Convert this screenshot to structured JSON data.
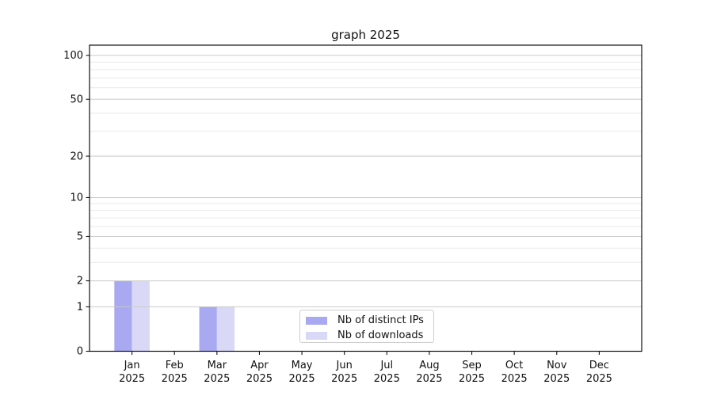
{
  "chart_data": {
    "type": "bar",
    "title": "graph 2025",
    "categories": [
      "Jan 2025",
      "Feb 2025",
      "Mar 2025",
      "Apr 2025",
      "May 2025",
      "Jun 2025",
      "Jul 2025",
      "Aug 2025",
      "Sep 2025",
      "Oct 2025",
      "Nov 2025",
      "Dec 2025"
    ],
    "x_axis": {
      "tick_months": [
        "Jan",
        "Feb",
        "Mar",
        "Apr",
        "May",
        "Jun",
        "Jul",
        "Aug",
        "Sep",
        "Oct",
        "Nov",
        "Dec"
      ],
      "tick_year": "2025"
    },
    "series": [
      {
        "name": "Nb of distinct IPs",
        "color": "#a9a9f1",
        "values": [
          2,
          0,
          1,
          0,
          0,
          0,
          0,
          0,
          0,
          0,
          0,
          0
        ]
      },
      {
        "name": "Nb of downloads",
        "color": "#d9d9f7",
        "values": [
          2,
          0,
          1,
          0,
          0,
          0,
          0,
          0,
          0,
          0,
          0,
          0
        ]
      }
    ],
    "y_axis": {
      "scale": "log1p",
      "major_ticks": [
        0,
        1,
        2,
        5,
        10,
        20,
        50,
        100
      ],
      "minor_gridlines": [
        3,
        4,
        6,
        7,
        8,
        9,
        30,
        40,
        60,
        70,
        80,
        90
      ],
      "range": [
        0,
        118
      ]
    },
    "grid": {
      "orientation": "horizontal",
      "major_color": "#c9c9c9",
      "minor_color": "#e9e9e9",
      "grid_above_bars": true
    },
    "legend": {
      "position": "lower center",
      "border_color": "#cccccc"
    },
    "colors": {
      "axis": "#111111",
      "background": "#ffffff"
    }
  }
}
